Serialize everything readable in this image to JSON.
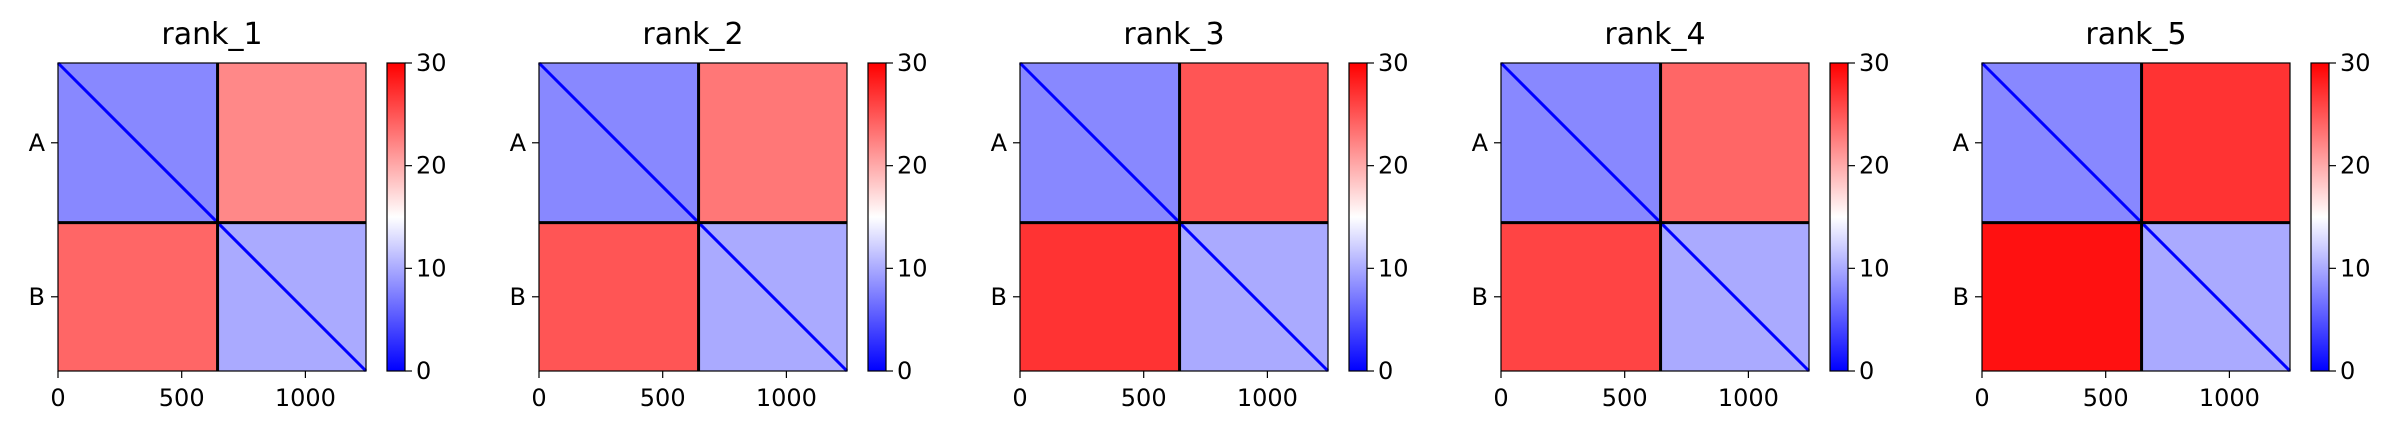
{
  "chart_data": [
    {
      "type": "heatmap",
      "title": "rank_1",
      "x_ticks": [
        0,
        500,
        1000
      ],
      "xlim": [
        0,
        1245
      ],
      "y_tick_labels": [
        "A",
        "B"
      ],
      "chain_boundary": 645,
      "colorbar": {
        "ticks": [
          0,
          10,
          20,
          30
        ],
        "range": [
          0,
          30
        ],
        "colormap": [
          "#0000ff",
          "#ffffff",
          "#ff0000"
        ]
      },
      "blocks": {
        "AA": 8,
        "AB": 22,
        "BA": 24,
        "BB": 10
      }
    },
    {
      "type": "heatmap",
      "title": "rank_2",
      "x_ticks": [
        0,
        500,
        1000
      ],
      "xlim": [
        0,
        1245
      ],
      "y_tick_labels": [
        "A",
        "B"
      ],
      "chain_boundary": 645,
      "colorbar": {
        "ticks": [
          0,
          10,
          20,
          30
        ],
        "range": [
          0,
          30
        ],
        "colormap": [
          "#0000ff",
          "#ffffff",
          "#ff0000"
        ]
      },
      "blocks": {
        "AA": 8,
        "AB": 23,
        "BA": 25,
        "BB": 10
      }
    },
    {
      "type": "heatmap",
      "title": "rank_3",
      "x_ticks": [
        0,
        500,
        1000
      ],
      "xlim": [
        0,
        1245
      ],
      "y_tick_labels": [
        "A",
        "B"
      ],
      "chain_boundary": 645,
      "colorbar": {
        "ticks": [
          0,
          10,
          20,
          30
        ],
        "range": [
          0,
          30
        ],
        "colormap": [
          "#0000ff",
          "#ffffff",
          "#ff0000"
        ]
      },
      "blocks": {
        "AA": 8,
        "AB": 25,
        "BA": 27,
        "BB": 10
      }
    },
    {
      "type": "heatmap",
      "title": "rank_4",
      "x_ticks": [
        0,
        500,
        1000
      ],
      "xlim": [
        0,
        1245
      ],
      "y_tick_labels": [
        "A",
        "B"
      ],
      "chain_boundary": 645,
      "colorbar": {
        "ticks": [
          0,
          10,
          20,
          30
        ],
        "range": [
          0,
          30
        ],
        "colormap": [
          "#0000ff",
          "#ffffff",
          "#ff0000"
        ]
      },
      "blocks": {
        "AA": 8,
        "AB": 24,
        "BA": 26,
        "BB": 10
      }
    },
    {
      "type": "heatmap",
      "title": "rank_5",
      "x_ticks": [
        0,
        500,
        1000
      ],
      "xlim": [
        0,
        1245
      ],
      "y_tick_labels": [
        "A",
        "B"
      ],
      "chain_boundary": 645,
      "colorbar": {
        "ticks": [
          0,
          10,
          20,
          30
        ],
        "range": [
          0,
          30
        ],
        "colormap": [
          "#0000ff",
          "#ffffff",
          "#ff0000"
        ]
      },
      "blocks": {
        "AA": 8,
        "AB": 27,
        "BA": 29,
        "BB": 10
      }
    }
  ]
}
